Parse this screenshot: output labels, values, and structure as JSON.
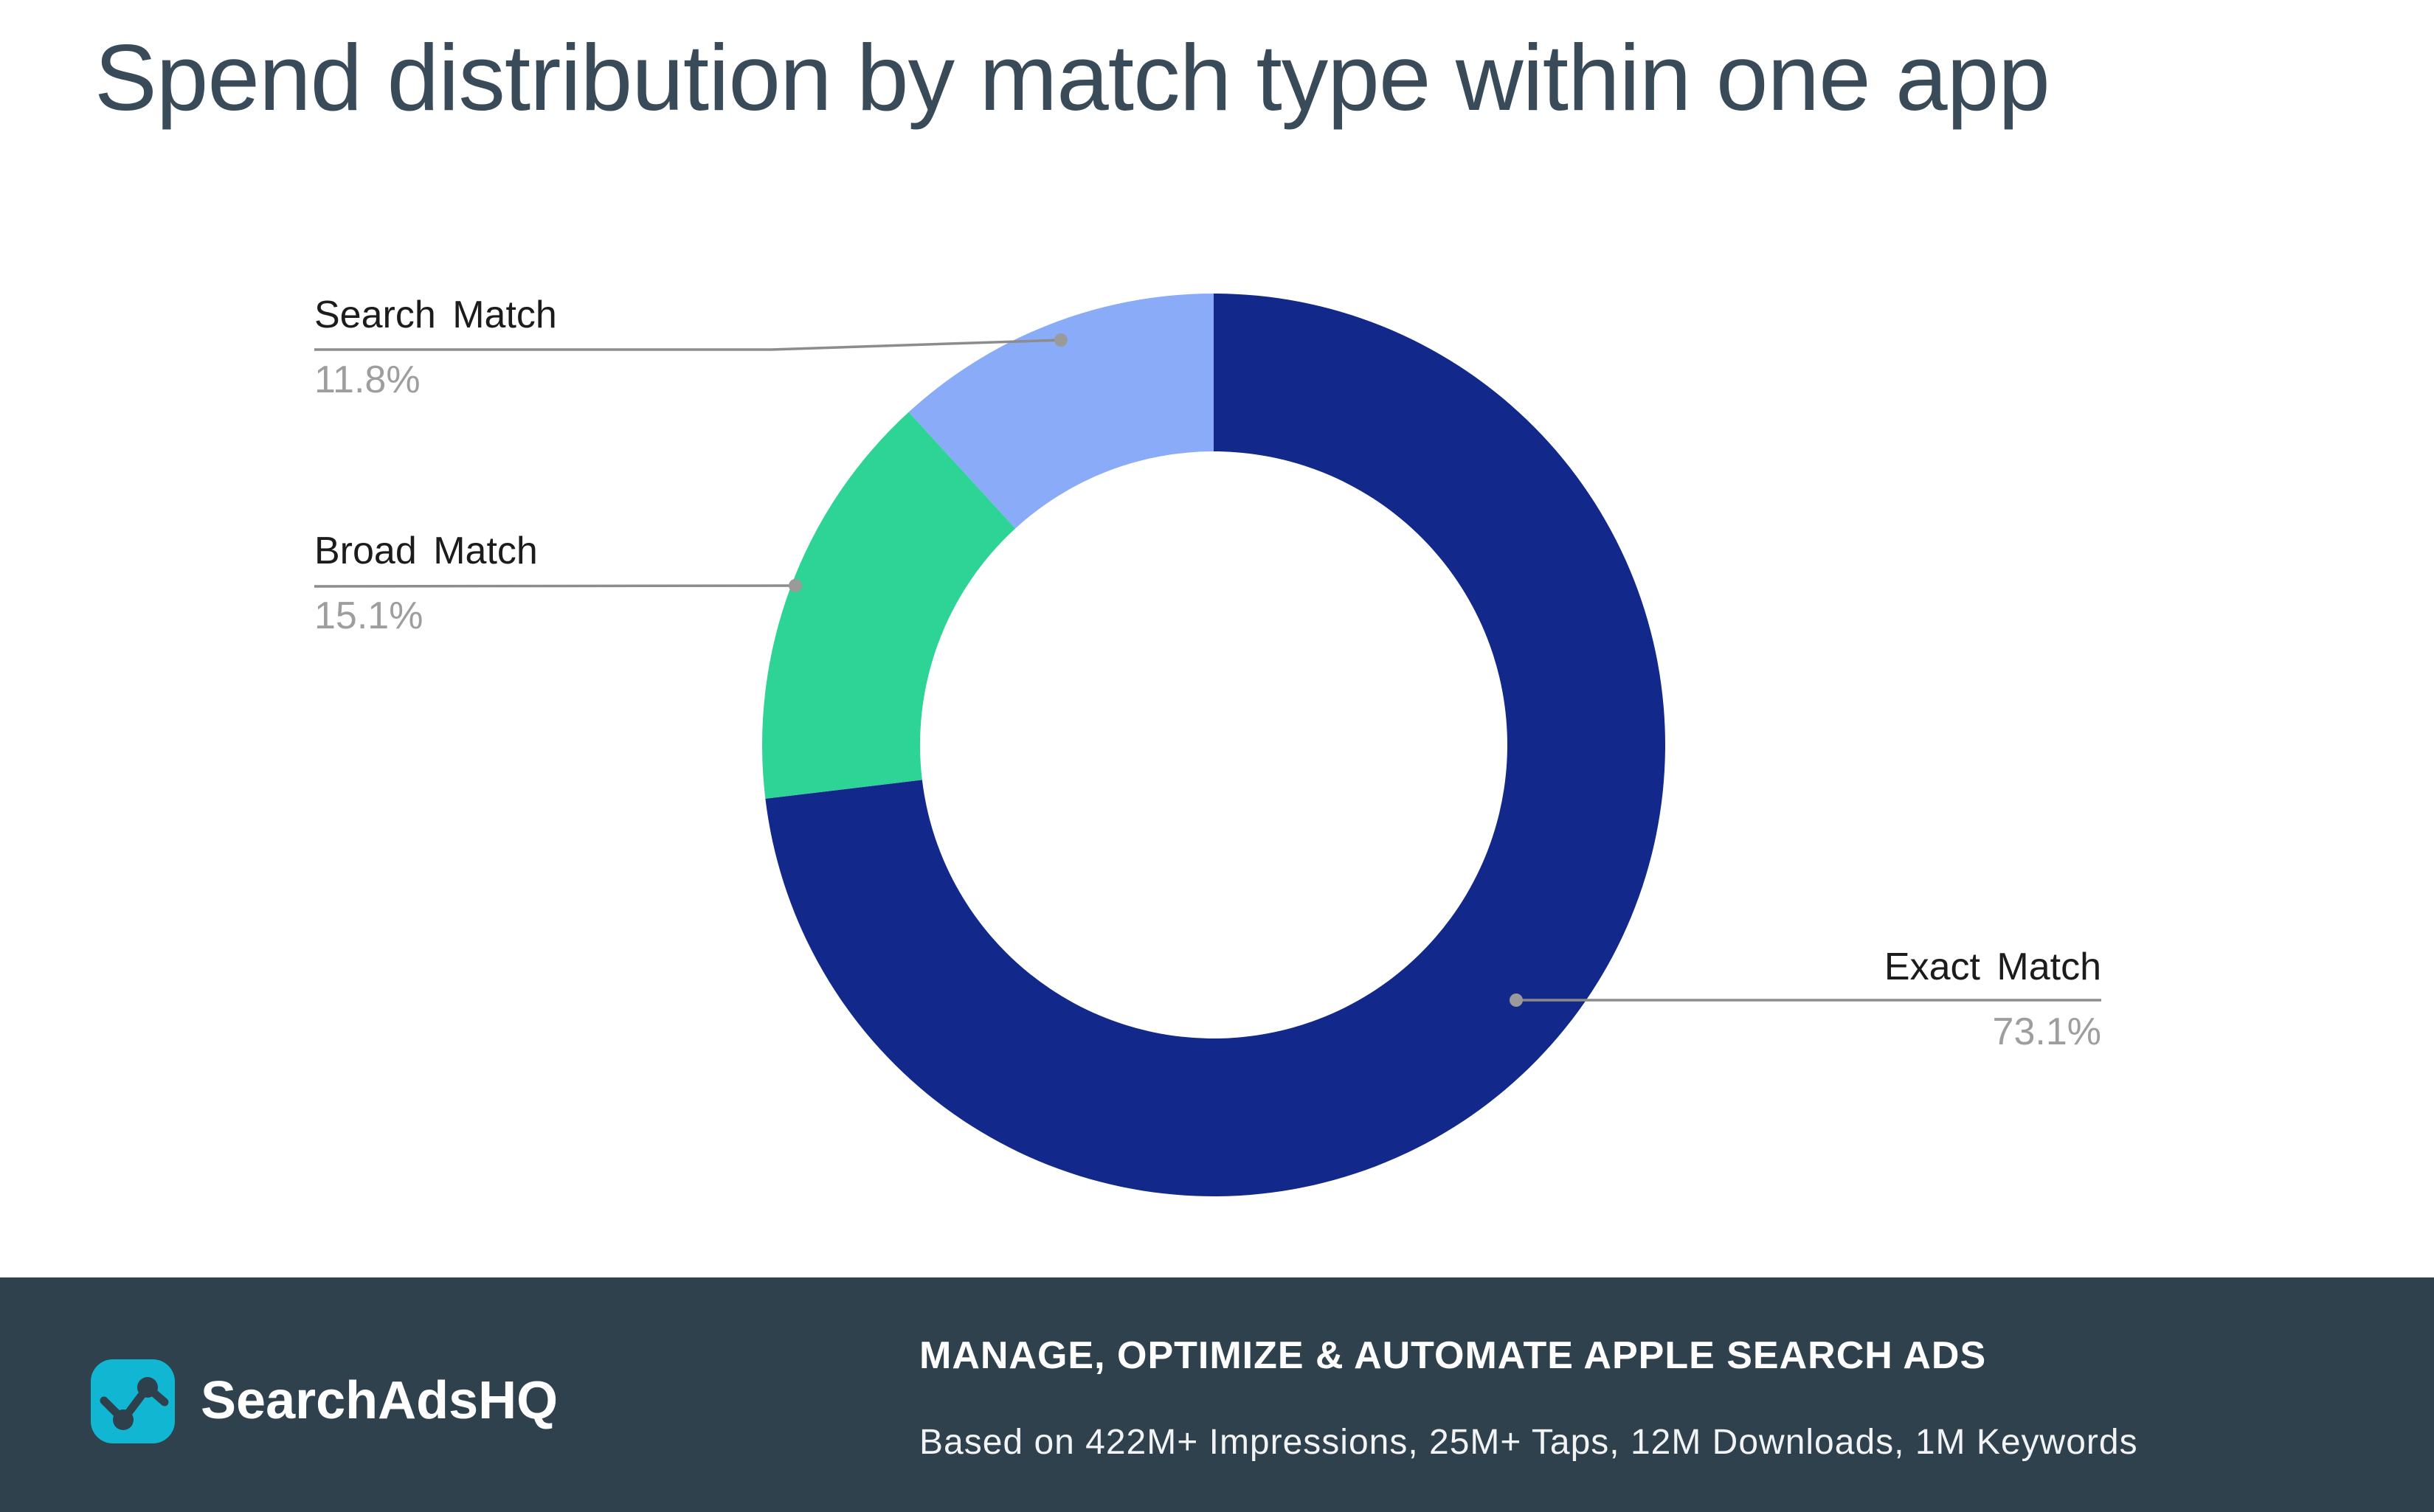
{
  "title": "Spend distribution by match type within one app",
  "chart_data": {
    "type": "pie",
    "subtype": "donut",
    "categories": [
      "Exact Match",
      "Broad Match",
      "Search Match"
    ],
    "values": [
      73.1,
      15.1,
      11.8
    ],
    "value_labels": [
      "73.1%",
      "15.1%",
      "11.8%"
    ],
    "colors": [
      "#12288a",
      "#2dd496",
      "#8aabf8"
    ],
    "start_angle_deg": 0,
    "direction": "clockwise",
    "inner_radius_ratio": 0.65,
    "legend": "callout-labels-with-leader-lines",
    "label_color": "#1c1c1c",
    "percent_color": "#9e9e9e",
    "leader_line_color": "#8c8c8c"
  },
  "footer": {
    "logo_text": "SearchAdsHQ",
    "headline": "MANAGE, OPTIMIZE & AUTOMATE APPLE SEARCH ADS",
    "subline": "Based on 422M+ Impressions, 25M+ Taps, 12M Downloads, 1M Keywords",
    "background_color": "#30414e",
    "logo_color": "#10b6d2"
  }
}
